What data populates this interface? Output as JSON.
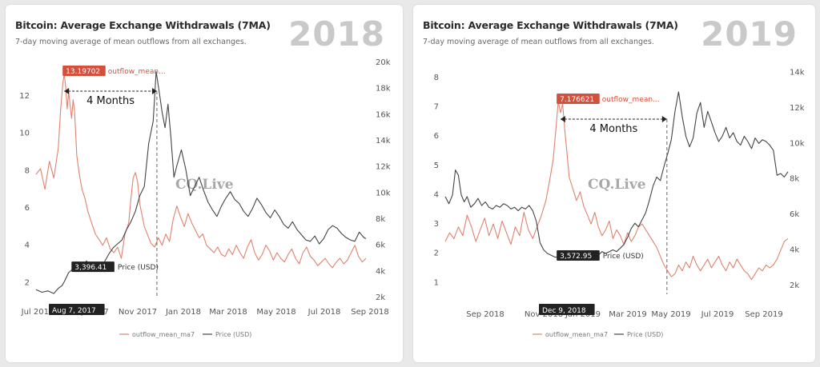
{
  "panels": [
    {
      "title": "Bitcoin: Average Exchange Withdrawals (7MA)",
      "subtitle": "7-day moving average of mean outflows from all exchanges.",
      "year": "2018",
      "watermark": "CQ.Live",
      "annotation": "4 Months",
      "peak_label": "13.19702",
      "peak_series": "outflow_mean...",
      "price_label": "3,396.41",
      "price_series": "Price (USD)",
      "date_label": "Aug 7, 2017",
      "legend": [
        "outflow_mean_ma7",
        "Price (USD)"
      ]
    },
    {
      "title": "Bitcoin: Average Exchange Withdrawals (7MA)",
      "subtitle": "7-day moving average of mean outflows from all exchanges.",
      "year": "2019",
      "watermark": "CQ.Live",
      "annotation": "4 Months",
      "peak_label": "7.176621",
      "peak_series": "outflow_mean...",
      "price_label": "3,572.95",
      "price_series": "Price (USD)",
      "date_label": "Dec 9, 2018",
      "legend": [
        "outflow_mean_ma7",
        "Price (USD)"
      ]
    }
  ],
  "colors": {
    "outflow": "#e0826f",
    "price": "#444444",
    "label_red": "#d2503c",
    "label_dark": "#222222"
  },
  "chart_data": [
    {
      "type": "line",
      "x_ticks": [
        "Jul 2017",
        "Sep 2017",
        "Nov 2017",
        "Jan 2018",
        "Mar 2018",
        "May 2018",
        "Jul 2018",
        "Sep 2018"
      ],
      "y_left_ticks": [
        "2",
        "4",
        "6",
        "8",
        "10",
        "12"
      ],
      "y_right_ticks": [
        "2k",
        "4k",
        "6k",
        "8k",
        "10k",
        "12k",
        "14k",
        "16k",
        "18k",
        "20k"
      ],
      "ylim_left": [
        1.2,
        13.8
      ],
      "ylim_right": [
        2000,
        20000
      ],
      "xlim_days": [
        0,
        445
      ],
      "series": [
        {
          "name": "outflow_mean_ma7",
          "axis": "left",
          "x": [
            0,
            6,
            12,
            18,
            24,
            30,
            33,
            36,
            38,
            40,
            42,
            44,
            46,
            48,
            50,
            52,
            55,
            58,
            62,
            66,
            70,
            75,
            80,
            85,
            90,
            95,
            100,
            105,
            110,
            115,
            120,
            125,
            128,
            131,
            134,
            137,
            140,
            143,
            146,
            150,
            155,
            160,
            165,
            170,
            175,
            180,
            185,
            190,
            195,
            200,
            205,
            210,
            215,
            220,
            225,
            230,
            235,
            240,
            245,
            250,
            255,
            260,
            265,
            270,
            275,
            280,
            285,
            290,
            295,
            300,
            305,
            310,
            315,
            320,
            325,
            330,
            335,
            340,
            345,
            350,
            355,
            360,
            365,
            370,
            375,
            380,
            385,
            390,
            395,
            400,
            405,
            410,
            415,
            420,
            425,
            430,
            435,
            440,
            445
          ],
          "y": [
            7.8,
            8.1,
            7.0,
            8.5,
            7.6,
            9.2,
            11.2,
            12.6,
            13.2,
            12.5,
            11.3,
            12.2,
            11.5,
            10.8,
            11.8,
            11.2,
            8.8,
            7.9,
            7.0,
            6.5,
            5.8,
            5.2,
            4.6,
            4.3,
            4.0,
            4.4,
            3.8,
            3.6,
            3.9,
            3.3,
            4.6,
            5.2,
            6.5,
            7.6,
            7.9,
            7.4,
            6.2,
            5.6,
            5.0,
            4.6,
            4.1,
            3.9,
            4.4,
            4.0,
            4.6,
            4.2,
            5.4,
            6.1,
            5.5,
            5.0,
            5.7,
            5.2,
            4.8,
            4.4,
            4.6,
            4.0,
            3.8,
            3.6,
            3.9,
            3.5,
            3.4,
            3.8,
            3.5,
            4.0,
            3.6,
            3.3,
            3.9,
            4.3,
            3.6,
            3.2,
            3.5,
            4.0,
            3.7,
            3.2,
            3.6,
            3.3,
            3.1,
            3.5,
            3.8,
            3.3,
            3.0,
            3.6,
            3.9,
            3.4,
            3.2,
            2.9,
            3.1,
            3.3,
            3.0,
            2.8,
            3.1,
            3.3,
            3.0,
            3.2,
            3.6,
            4.0,
            3.4,
            3.1,
            3.3
          ]
        },
        {
          "name": "Price (USD)",
          "axis": "right",
          "x": [
            0,
            8,
            16,
            24,
            30,
            35,
            38,
            44,
            50,
            56,
            62,
            68,
            74,
            80,
            86,
            92,
            98,
            104,
            110,
            116,
            122,
            128,
            134,
            140,
            146,
            152,
            158,
            162,
            166,
            170,
            174,
            178,
            182,
            186,
            190,
            196,
            202,
            208,
            214,
            220,
            226,
            232,
            238,
            244,
            250,
            256,
            262,
            268,
            274,
            280,
            286,
            292,
            298,
            304,
            310,
            316,
            322,
            328,
            334,
            340,
            346,
            352,
            358,
            364,
            370,
            376,
            382,
            388,
            394,
            400,
            406,
            412,
            418,
            424,
            430,
            436,
            442,
            445
          ],
          "y": [
            2600,
            2400,
            2500,
            2300,
            2700,
            2900,
            3200,
            3900,
            4200,
            4600,
            4300,
            4800,
            4400,
            4100,
            4500,
            4700,
            5300,
            5800,
            6100,
            6400,
            7200,
            7800,
            8600,
            9800,
            10500,
            13800,
            15500,
            19300,
            17800,
            16200,
            15000,
            16800,
            14200,
            11200,
            12100,
            13300,
            11800,
            9800,
            10500,
            11200,
            10200,
            9300,
            8700,
            8200,
            9000,
            9600,
            10100,
            9500,
            9200,
            8600,
            8200,
            8800,
            9600,
            9100,
            8500,
            8100,
            8700,
            8200,
            7600,
            7300,
            7800,
            7200,
            6800,
            6400,
            6300,
            6700,
            6100,
            6500,
            7200,
            7500,
            7300,
            6900,
            6600,
            6400,
            6300,
            7000,
            6600,
            6500
          ]
        }
      ]
    },
    {
      "type": "line",
      "x_ticks": [
        "Sep 2018",
        "Nov 2018",
        "Jan 2019",
        "Mar 2019",
        "May 2019",
        "Jul 2019",
        "Sep 2019"
      ],
      "y_left_ticks": [
        "1",
        "2",
        "3",
        "4",
        "5",
        "6",
        "7",
        "8"
      ],
      "y_right_ticks": [
        "2k",
        "4k",
        "6k",
        "8k",
        "10k",
        "12k",
        "14k"
      ],
      "ylim_left": [
        0.6,
        8.3
      ],
      "ylim_right": [
        1500,
        14200
      ],
      "xlim_days": [
        0,
        470
      ],
      "series": [
        {
          "name": "outflow_mean_ma7",
          "axis": "left",
          "x": [
            0,
            6,
            12,
            18,
            24,
            30,
            36,
            42,
            48,
            54,
            60,
            66,
            72,
            78,
            84,
            90,
            96,
            102,
            108,
            114,
            120,
            126,
            132,
            138,
            144,
            148,
            152,
            155,
            158,
            161,
            164,
            167,
            170,
            175,
            180,
            185,
            190,
            195,
            200,
            205,
            210,
            215,
            220,
            225,
            230,
            235,
            240,
            245,
            250,
            255,
            260,
            265,
            270,
            275,
            280,
            285,
            290,
            295,
            300,
            305,
            310,
            315,
            320,
            325,
            330,
            335,
            340,
            345,
            350,
            355,
            360,
            365,
            370,
            375,
            380,
            385,
            390,
            395,
            400,
            405,
            410,
            415,
            420,
            425,
            430,
            435,
            440,
            445,
            450,
            455,
            460,
            465,
            470
          ],
          "y": [
            2.4,
            2.7,
            2.5,
            2.9,
            2.6,
            3.3,
            2.9,
            2.4,
            2.8,
            3.2,
            2.6,
            3.0,
            2.5,
            3.1,
            2.7,
            2.3,
            2.9,
            2.6,
            3.4,
            2.8,
            2.5,
            2.9,
            3.3,
            3.8,
            4.6,
            5.2,
            6.3,
            7.18,
            6.8,
            7.1,
            6.2,
            5.4,
            4.6,
            4.2,
            3.8,
            4.1,
            3.6,
            3.3,
            3.0,
            3.4,
            2.9,
            2.6,
            2.8,
            3.1,
            2.5,
            2.8,
            2.6,
            2.3,
            2.7,
            2.4,
            2.6,
            2.9,
            3.0,
            2.8,
            2.6,
            2.4,
            2.2,
            1.9,
            1.6,
            1.4,
            1.2,
            1.3,
            1.6,
            1.4,
            1.7,
            1.5,
            1.9,
            1.6,
            1.4,
            1.6,
            1.8,
            1.5,
            1.7,
            1.9,
            1.6,
            1.4,
            1.7,
            1.5,
            1.8,
            1.6,
            1.4,
            1.3,
            1.1,
            1.3,
            1.5,
            1.4,
            1.6,
            1.5,
            1.6,
            1.8,
            2.1,
            2.4,
            2.5
          ]
        },
        {
          "name": "Price (USD)",
          "axis": "right",
          "x": [
            0,
            5,
            10,
            14,
            18,
            22,
            26,
            30,
            35,
            40,
            45,
            50,
            55,
            60,
            65,
            70,
            75,
            80,
            85,
            90,
            95,
            100,
            105,
            110,
            115,
            120,
            125,
            130,
            135,
            140,
            145,
            150,
            155,
            160,
            165,
            170,
            175,
            180,
            185,
            190,
            195,
            200,
            205,
            210,
            215,
            220,
            225,
            230,
            235,
            240,
            245,
            250,
            255,
            260,
            265,
            270,
            275,
            280,
            285,
            290,
            295,
            300,
            305,
            310,
            315,
            320,
            325,
            330,
            335,
            340,
            345,
            350,
            355,
            360,
            365,
            370,
            375,
            380,
            385,
            390,
            395,
            400,
            405,
            410,
            415,
            420,
            425,
            430,
            435,
            440,
            445,
            450,
            455,
            460,
            465,
            470
          ],
          "y": [
            7000,
            6600,
            7100,
            8500,
            8200,
            7100,
            6700,
            7000,
            6400,
            6600,
            6900,
            6500,
            6700,
            6400,
            6300,
            6500,
            6400,
            6600,
            6500,
            6300,
            6400,
            6200,
            6400,
            6300,
            6500,
            6200,
            5600,
            4400,
            4000,
            3800,
            3700,
            3600,
            3572,
            3700,
            3900,
            3600,
            3500,
            3800,
            3700,
            3600,
            3500,
            3700,
            3800,
            3700,
            3900,
            3800,
            3900,
            4000,
            3900,
            4100,
            4300,
            4700,
            5200,
            5500,
            5300,
            5700,
            6100,
            6800,
            7600,
            8100,
            7900,
            8700,
            9400,
            10200,
            11800,
            12900,
            11500,
            10400,
            9800,
            10300,
            11700,
            12300,
            10900,
            11800,
            11200,
            10600,
            10100,
            10400,
            10900,
            10300,
            10600,
            10100,
            9900,
            10400,
            10100,
            9700,
            10300,
            10000,
            10200,
            10100,
            9900,
            9600,
            8200,
            8300,
            8100,
            8400
          ]
        }
      ]
    }
  ]
}
